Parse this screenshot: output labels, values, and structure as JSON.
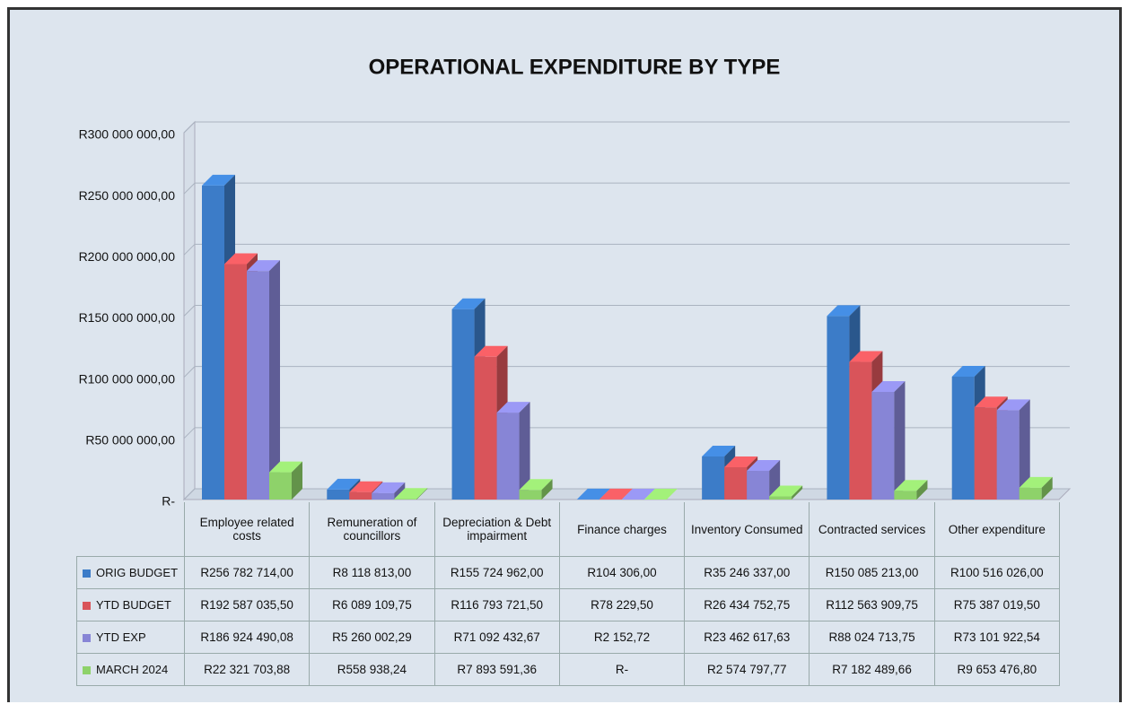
{
  "chart_data": {
    "type": "bar",
    "title": "OPERATIONAL EXPENDITURE BY TYPE",
    "categories": [
      "Employee related costs",
      "Remuneration of councillors",
      "Depreciation & Debt impairment",
      "Finance charges",
      "Inventory Consumed",
      "Contracted services",
      "Other expenditure"
    ],
    "series": [
      {
        "name": "ORIG BUDGET",
        "color": "#3c7cc8",
        "values": [
          256782714.0,
          8118813.0,
          155724962.0,
          104306.0,
          35246337.0,
          150085213.0,
          100516026.0
        ],
        "value_labels": [
          "R256 782 714,00",
          "R8 118 813,00",
          "R155 724 962,00",
          "R104 306,00",
          "R35 246 337,00",
          "R150 085 213,00",
          "R100 516 026,00"
        ]
      },
      {
        "name": "YTD BUDGET",
        "color": "#d9545a",
        "values": [
          192587035.5,
          6089109.75,
          116793721.5,
          78229.5,
          26434752.75,
          112563909.75,
          75387019.5
        ],
        "value_labels": [
          "R192 587 035,50",
          "R6 089 109,75",
          "R116 793 721,50",
          "R78 229,50",
          "R26 434 752,75",
          "R112 563 909,75",
          "R75 387 019,50"
        ]
      },
      {
        "name": "YTD EXP",
        "color": "#8785d6",
        "values": [
          186924490.08,
          5260002.29,
          71092432.67,
          2152.72,
          23462617.63,
          88024713.75,
          73101922.54
        ],
        "value_labels": [
          "R186 924 490,08",
          "R5 260 002,29",
          "R71 092 432,67",
          "R2 152,72",
          "R23 462 617,63",
          "R88 024 713,75",
          "R73 101 922,54"
        ]
      },
      {
        "name": "MARCH 2024",
        "color": "#8ed26a",
        "values": [
          22321703.88,
          558938.24,
          7893591.36,
          0,
          2574797.77,
          7182489.66,
          9653476.8
        ],
        "value_labels": [
          "R22 321 703,88",
          "R558 938,24",
          "R7 893 591,36",
          "R-",
          "R2 574 797,77",
          "R7 182 489,66",
          "R9 653 476,80"
        ]
      }
    ],
    "ylim": [
      0,
      300000000
    ],
    "yticks": [
      {
        "value": 0,
        "label": "R-"
      },
      {
        "value": 50000000,
        "label": "R50 000 000,00"
      },
      {
        "value": 100000000,
        "label": "R100 000 000,00"
      },
      {
        "value": 150000000,
        "label": "R150 000 000,00"
      },
      {
        "value": 200000000,
        "label": "R200 000 000,00"
      },
      {
        "value": 250000000,
        "label": "R250 000 000,00"
      },
      {
        "value": 300000000,
        "label": "R300 000 000,00"
      }
    ],
    "grid": true
  }
}
